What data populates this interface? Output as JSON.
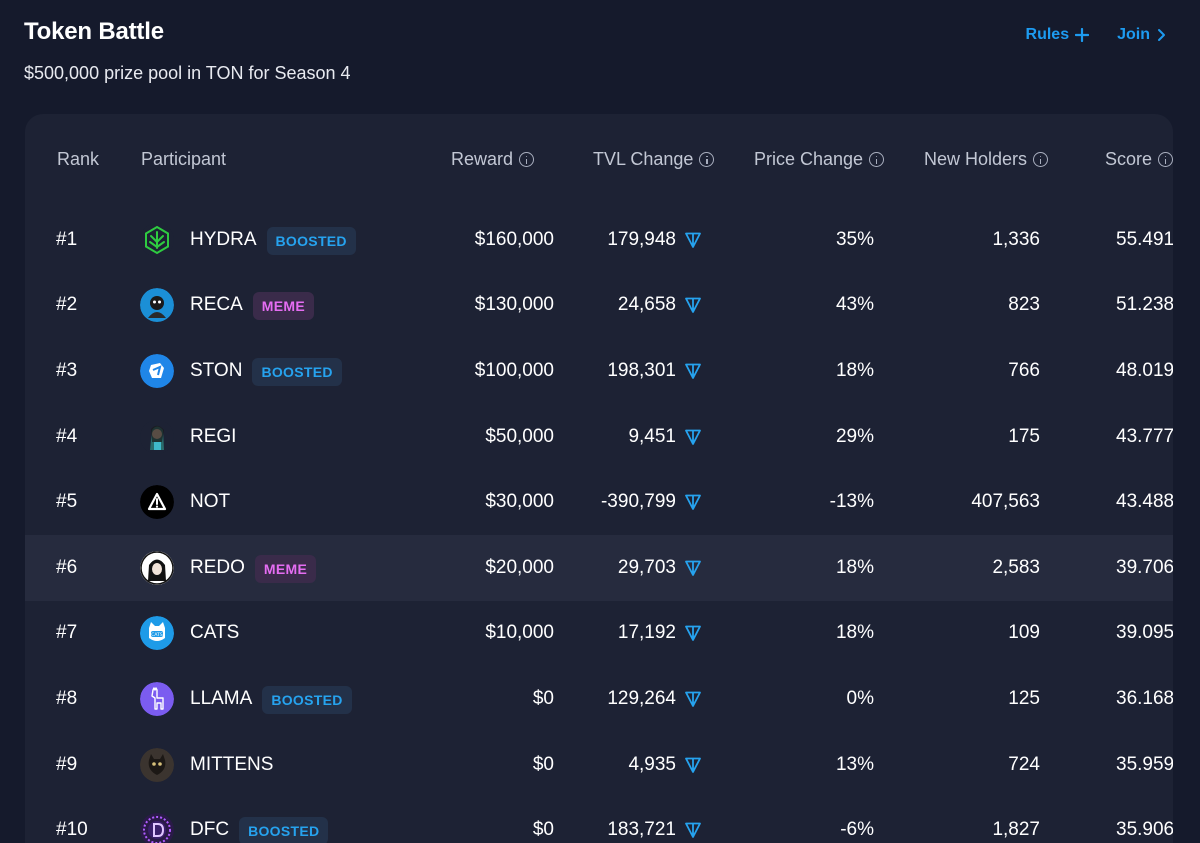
{
  "page": {
    "title": "Token Battle",
    "subtitle": "$500,000 prize pool in TON for Season 4",
    "rules_label": "Rules",
    "join_label": "Join"
  },
  "colors": {
    "background": "#151a2c",
    "card": "#1d2234",
    "accent": "#1d9bf0",
    "boosted_text": "#26a3ef",
    "meme_text": "#e56df2"
  },
  "table": {
    "headers": {
      "rank": "Rank",
      "participant": "Participant",
      "reward": "Reward",
      "tvl": "TVL Change",
      "price": "Price Change",
      "holders": "New Holders",
      "score": "Score"
    },
    "rows": [
      {
        "rank": "#1",
        "name": "HYDRA",
        "tag": "BOOSTED",
        "tag_type": "boosted",
        "avatar": "hydra-logo",
        "reward": "$160,000",
        "tvl": "179,948",
        "price": "35%",
        "holders": "1,336",
        "score": "55.491"
      },
      {
        "rank": "#2",
        "name": "RECA",
        "tag": "MEME",
        "tag_type": "meme",
        "avatar": "reca-logo",
        "reward": "$130,000",
        "tvl": "24,658",
        "price": "43%",
        "holders": "823",
        "score": "51.238"
      },
      {
        "rank": "#3",
        "name": "STON",
        "tag": "BOOSTED",
        "tag_type": "boosted",
        "avatar": "ston-logo",
        "reward": "$100,000",
        "tvl": "198,301",
        "price": "18%",
        "holders": "766",
        "score": "48.019"
      },
      {
        "rank": "#4",
        "name": "REGI",
        "tag": "",
        "tag_type": "",
        "avatar": "regi-logo",
        "reward": "$50,000",
        "tvl": "9,451",
        "price": "29%",
        "holders": "175",
        "score": "43.777"
      },
      {
        "rank": "#5",
        "name": "NOT",
        "tag": "",
        "tag_type": "",
        "avatar": "not-logo",
        "reward": "$30,000",
        "tvl": "-390,799",
        "price": "-13%",
        "holders": "407,563",
        "score": "43.488"
      },
      {
        "rank": "#6",
        "name": "REDO",
        "tag": "MEME",
        "tag_type": "meme",
        "avatar": "redo-logo",
        "reward": "$20,000",
        "tvl": "29,703",
        "price": "18%",
        "holders": "2,583",
        "score": "39.706",
        "highlighted": true
      },
      {
        "rank": "#7",
        "name": "CATS",
        "tag": "",
        "tag_type": "",
        "avatar": "cats-logo",
        "reward": "$10,000",
        "tvl": "17,192",
        "price": "18%",
        "holders": "109",
        "score": "39.095"
      },
      {
        "rank": "#8",
        "name": "LLAMA",
        "tag": "BOOSTED",
        "tag_type": "boosted",
        "avatar": "llama-logo",
        "reward": "$0",
        "tvl": "129,264",
        "price": "0%",
        "holders": "125",
        "score": "36.168"
      },
      {
        "rank": "#9",
        "name": "MITTENS",
        "tag": "",
        "tag_type": "",
        "avatar": "mittens-logo",
        "reward": "$0",
        "tvl": "4,935",
        "price": "13%",
        "holders": "724",
        "score": "35.959"
      },
      {
        "rank": "#10",
        "name": "DFC",
        "tag": "BOOSTED",
        "tag_type": "boosted",
        "avatar": "dfc-logo",
        "reward": "$0",
        "tvl": "183,721",
        "price": "-6%",
        "holders": "1,827",
        "score": "35.906"
      }
    ]
  }
}
